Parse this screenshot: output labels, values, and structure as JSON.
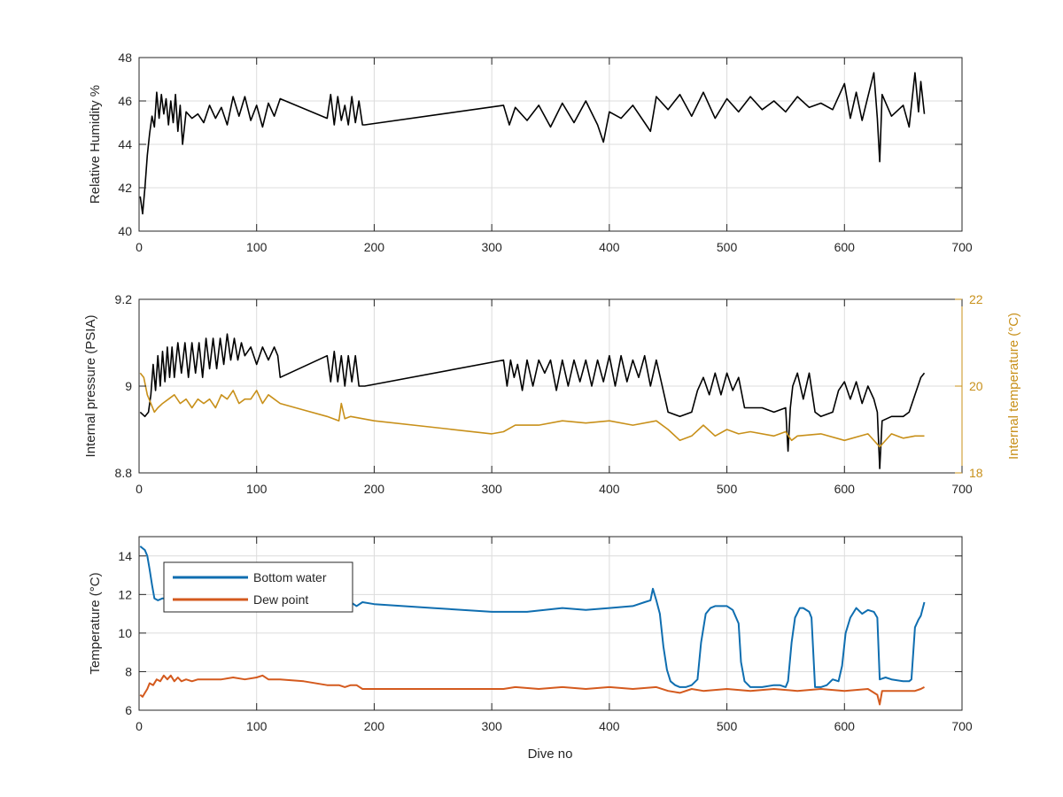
{
  "colors": {
    "black": "#000000",
    "gold": "#C8901A",
    "blue": "#0F6EB0",
    "orange": "#D45A1E",
    "axis": "#262626",
    "grid": "#DCDCDC"
  },
  "chart_data": [
    {
      "type": "line",
      "xlabel": "",
      "ylabel": "Relative Humidity %",
      "xlim": [
        0,
        700
      ],
      "ylim": [
        40,
        48
      ],
      "xticks": [
        "0",
        "100",
        "200",
        "300",
        "400",
        "500",
        "600",
        "700"
      ],
      "yticks": [
        "40",
        "42",
        "44",
        "46",
        "48"
      ],
      "grid": true,
      "series": [
        {
          "name": "Relative Humidity",
          "color": "#000000",
          "x": [
            1,
            3,
            5,
            7,
            9,
            11,
            13,
            15,
            17,
            19,
            21,
            23,
            25,
            27,
            29,
            31,
            33,
            35,
            37,
            40,
            45,
            50,
            55,
            60,
            65,
            70,
            75,
            80,
            85,
            90,
            95,
            100,
            105,
            110,
            115,
            120,
            160,
            163,
            166,
            169,
            172,
            175,
            178,
            181,
            184,
            187,
            190,
            192,
            310,
            315,
            320,
            330,
            340,
            350,
            360,
            370,
            380,
            390,
            395,
            400,
            410,
            420,
            430,
            435,
            440,
            450,
            460,
            470,
            480,
            490,
            500,
            510,
            520,
            530,
            540,
            550,
            560,
            570,
            580,
            590,
            600,
            605,
            610,
            615,
            620,
            625,
            628,
            630,
            632,
            640,
            650,
            655,
            660,
            663,
            665,
            668
          ],
          "y": [
            41.6,
            40.8,
            42,
            43.5,
            44.5,
            45.3,
            44.8,
            46.4,
            45.2,
            46.3,
            45.4,
            46.1,
            44.9,
            46,
            45,
            46.3,
            44.6,
            45.8,
            44,
            45.5,
            45.2,
            45.4,
            45,
            45.8,
            45.2,
            45.7,
            44.9,
            46.2,
            45.3,
            46.2,
            45.1,
            45.8,
            44.8,
            45.9,
            45.3,
            46.1,
            45.2,
            46.3,
            44.9,
            46.2,
            45.1,
            45.8,
            44.9,
            46.2,
            45,
            46,
            44.9,
            44.9,
            45.8,
            44.9,
            45.7,
            45.1,
            45.8,
            44.8,
            45.9,
            45,
            46,
            44.9,
            44.1,
            45.5,
            45.2,
            45.8,
            45,
            44.6,
            46.2,
            45.6,
            46.3,
            45.3,
            46.4,
            45.2,
            46.1,
            45.5,
            46.2,
            45.6,
            46,
            45.5,
            46.2,
            45.7,
            45.9,
            45.6,
            46.8,
            45.2,
            46.4,
            45.1,
            46.2,
            47.3,
            45.2,
            43.2,
            46.3,
            45.3,
            45.8,
            44.8,
            47.3,
            45.5,
            46.9,
            45.4
          ]
        }
      ]
    },
    {
      "type": "line",
      "xlabel": "",
      "ylabel": "Internal pressure (PSIA)",
      "ylabel_right": "Internal temperature (°C)",
      "xlim": [
        0,
        700
      ],
      "ylim": [
        8.8,
        9.2
      ],
      "ylim_right": [
        18,
        22
      ],
      "xticks": [
        "0",
        "100",
        "200",
        "300",
        "400",
        "500",
        "600",
        "700"
      ],
      "yticks": [
        "8.8",
        "9",
        "9.2"
      ],
      "yticks_right": [
        "18",
        "20",
        "22"
      ],
      "grid": true,
      "series": [
        {
          "name": "Internal pressure",
          "axis": "left",
          "color": "#000000",
          "x": [
            1,
            5,
            8,
            10,
            12,
            14,
            16,
            18,
            20,
            22,
            24,
            26,
            28,
            30,
            33,
            36,
            39,
            42,
            45,
            48,
            51,
            54,
            57,
            60,
            63,
            66,
            69,
            72,
            75,
            78,
            81,
            84,
            87,
            90,
            95,
            100,
            105,
            110,
            115,
            118,
            120,
            160,
            163,
            166,
            169,
            172,
            175,
            178,
            181,
            184,
            187,
            190,
            192,
            310,
            313,
            316,
            319,
            322,
            326,
            330,
            335,
            340,
            345,
            350,
            355,
            360,
            365,
            370,
            375,
            380,
            385,
            390,
            395,
            400,
            405,
            410,
            415,
            420,
            425,
            430,
            435,
            440,
            445,
            450,
            460,
            470,
            475,
            480,
            485,
            490,
            495,
            500,
            505,
            510,
            515,
            520,
            530,
            540,
            550,
            552,
            554,
            556,
            560,
            565,
            570,
            575,
            580,
            590,
            595,
            600,
            605,
            610,
            615,
            620,
            625,
            628,
            630,
            632,
            640,
            650,
            655,
            660,
            665,
            668
          ],
          "y": [
            8.94,
            8.93,
            8.94,
            8.98,
            9.05,
            8.99,
            9.07,
            9.0,
            9.08,
            9.01,
            9.09,
            9.02,
            9.09,
            9.02,
            9.1,
            9.03,
            9.1,
            9.02,
            9.1,
            9.03,
            9.1,
            9.02,
            9.11,
            9.04,
            9.11,
            9.04,
            9.11,
            9.05,
            9.12,
            9.06,
            9.11,
            9.06,
            9.1,
            9.07,
            9.09,
            9.05,
            9.09,
            9.06,
            9.09,
            9.07,
            9.02,
            9.07,
            9.01,
            9.08,
            9.01,
            9.07,
            9.0,
            9.07,
            9.01,
            9.07,
            9.0,
            9.0,
            9.0,
            9.06,
            9.0,
            9.06,
            9.02,
            9.05,
            8.99,
            9.06,
            9.0,
            9.06,
            9.03,
            9.06,
            8.99,
            9.06,
            9.0,
            9.06,
            9.01,
            9.06,
            9.0,
            9.06,
            9.01,
            9.07,
            9.0,
            9.07,
            9.01,
            9.06,
            9.02,
            9.07,
            9.0,
            9.06,
            9.0,
            8.94,
            8.93,
            8.94,
            8.99,
            9.02,
            8.98,
            9.03,
            8.98,
            9.03,
            8.99,
            9.02,
            8.95,
            8.95,
            8.95,
            8.94,
            8.95,
            8.85,
            8.95,
            9.0,
            9.03,
            8.97,
            9.03,
            8.94,
            8.93,
            8.94,
            8.99,
            9.01,
            8.97,
            9.01,
            8.96,
            9.0,
            8.97,
            8.94,
            8.81,
            8.92,
            8.93,
            8.93,
            8.94,
            8.98,
            9.02,
            9.03
          ]
        },
        {
          "name": "Internal temperature",
          "axis": "right",
          "color": "#C8901A",
          "x": [
            1,
            4,
            7,
            10,
            13,
            16,
            20,
            25,
            30,
            35,
            40,
            45,
            50,
            55,
            60,
            65,
            70,
            75,
            80,
            85,
            90,
            95,
            100,
            105,
            110,
            115,
            120,
            140,
            160,
            170,
            172,
            175,
            180,
            200,
            250,
            300,
            310,
            320,
            340,
            360,
            380,
            400,
            420,
            440,
            450,
            460,
            470,
            480,
            490,
            500,
            510,
            520,
            540,
            550,
            555,
            560,
            580,
            600,
            620,
            630,
            640,
            650,
            660,
            668
          ],
          "y": [
            20.3,
            20.2,
            19.8,
            19.6,
            19.4,
            19.5,
            19.6,
            19.7,
            19.8,
            19.6,
            19.7,
            19.5,
            19.7,
            19.6,
            19.7,
            19.5,
            19.8,
            19.7,
            19.9,
            19.6,
            19.7,
            19.7,
            19.9,
            19.6,
            19.8,
            19.7,
            19.6,
            19.45,
            19.3,
            19.2,
            19.6,
            19.25,
            19.3,
            19.2,
            19.05,
            18.9,
            18.95,
            19.1,
            19.1,
            19.2,
            19.15,
            19.2,
            19.1,
            19.2,
            19.0,
            18.75,
            18.85,
            19.1,
            18.85,
            19.0,
            18.9,
            18.95,
            18.85,
            18.95,
            18.75,
            18.85,
            18.9,
            18.75,
            18.9,
            18.6,
            18.9,
            18.8,
            18.85,
            18.85
          ]
        }
      ]
    },
    {
      "type": "line",
      "xlabel": "Dive no",
      "ylabel": "Temperature (°C)",
      "xlim": [
        0,
        700
      ],
      "ylim": [
        6,
        15
      ],
      "xticks": [
        "0",
        "100",
        "200",
        "300",
        "400",
        "500",
        "600",
        "700"
      ],
      "yticks": [
        "6",
        "8",
        "10",
        "12",
        "14"
      ],
      "grid": true,
      "legend": {
        "position": "top-left",
        "entries": [
          "Bottom water",
          "Dew point"
        ]
      },
      "series": [
        {
          "name": "Bottom water",
          "color": "#0F6EB0",
          "x": [
            1,
            3,
            5,
            7,
            9,
            11,
            13,
            16,
            20,
            25,
            35,
            60,
            100,
            150,
            180,
            185,
            190,
            200,
            250,
            300,
            330,
            360,
            380,
            400,
            420,
            430,
            435,
            437,
            440,
            443,
            446,
            449,
            452,
            456,
            460,
            465,
            470,
            475,
            478,
            482,
            486,
            490,
            500,
            505,
            510,
            512,
            515,
            520,
            530,
            540,
            545,
            550,
            552,
            555,
            558,
            562,
            565,
            570,
            572,
            575,
            580,
            585,
            590,
            595,
            598,
            601,
            605,
            610,
            615,
            620,
            625,
            628,
            630,
            635,
            640,
            650,
            655,
            657,
            660,
            663,
            665,
            668
          ],
          "y": [
            14.5,
            14.4,
            14.3,
            14.0,
            13.3,
            12.5,
            11.8,
            11.7,
            11.8,
            11.8,
            11.8,
            11.8,
            11.9,
            11.8,
            11.6,
            11.4,
            11.6,
            11.5,
            11.3,
            11.1,
            11.1,
            11.3,
            11.2,
            11.3,
            11.4,
            11.6,
            11.7,
            12.3,
            11.7,
            11.0,
            9.3,
            8.1,
            7.5,
            7.3,
            7.2,
            7.2,
            7.3,
            7.6,
            9.5,
            11.0,
            11.3,
            11.4,
            11.4,
            11.2,
            10.5,
            8.5,
            7.5,
            7.2,
            7.2,
            7.3,
            7.3,
            7.2,
            7.5,
            9.5,
            10.8,
            11.3,
            11.3,
            11.1,
            10.8,
            7.2,
            7.2,
            7.3,
            7.6,
            7.5,
            8.3,
            10.0,
            10.8,
            11.3,
            11.0,
            11.2,
            11.1,
            10.8,
            7.6,
            7.7,
            7.6,
            7.5,
            7.5,
            7.6,
            10.3,
            10.7,
            10.9,
            11.6
          ]
        },
        {
          "name": "Dew point",
          "color": "#D45A1E",
          "x": [
            1,
            3,
            5,
            7,
            9,
            12,
            15,
            18,
            21,
            24,
            27,
            30,
            33,
            36,
            40,
            45,
            50,
            60,
            70,
            80,
            90,
            100,
            105,
            110,
            120,
            140,
            160,
            170,
            175,
            180,
            185,
            190,
            192,
            310,
            320,
            340,
            360,
            380,
            400,
            420,
            440,
            450,
            460,
            470,
            480,
            500,
            520,
            540,
            560,
            580,
            600,
            620,
            628,
            630,
            632,
            640,
            650,
            660,
            665,
            668
          ],
          "y": [
            6.8,
            6.7,
            6.9,
            7.1,
            7.4,
            7.3,
            7.6,
            7.5,
            7.8,
            7.6,
            7.8,
            7.5,
            7.7,
            7.5,
            7.6,
            7.5,
            7.6,
            7.6,
            7.6,
            7.7,
            7.6,
            7.7,
            7.8,
            7.6,
            7.6,
            7.5,
            7.3,
            7.3,
            7.2,
            7.3,
            7.3,
            7.1,
            7.1,
            7.1,
            7.2,
            7.1,
            7.2,
            7.1,
            7.2,
            7.1,
            7.2,
            7.0,
            6.9,
            7.1,
            7.0,
            7.1,
            7.0,
            7.1,
            7.0,
            7.1,
            7.0,
            7.1,
            6.8,
            6.3,
            7.0,
            7.0,
            7.0,
            7.0,
            7.1,
            7.2
          ]
        }
      ]
    }
  ]
}
